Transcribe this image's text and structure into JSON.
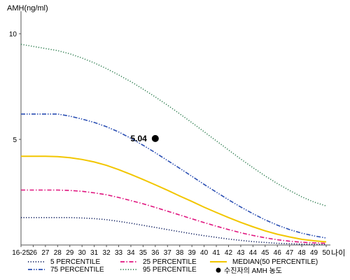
{
  "chart_data": {
    "type": "line",
    "ylabel": "AMH(ng/ml)",
    "xlabel": "나이",
    "x": [
      "16-25",
      "26",
      "27",
      "28",
      "29",
      "30",
      "31",
      "32",
      "33",
      "34",
      "35",
      "36",
      "37",
      "38",
      "39",
      "40",
      "41",
      "42",
      "43",
      "44",
      "45",
      "46",
      "47",
      "48",
      "49",
      "50"
    ],
    "yticks": [
      "10",
      "5"
    ],
    "ylim": [
      0,
      11
    ],
    "grid": false,
    "legend_position": "bottom",
    "series": [
      {
        "name": "5 PERCENTILE",
        "color": "#0a1a5c",
        "dash": "dotted",
        "values": [
          1.3,
          1.3,
          1.3,
          1.3,
          1.3,
          1.28,
          1.25,
          1.2,
          1.12,
          1.03,
          0.93,
          0.83,
          0.73,
          0.63,
          0.53,
          0.44,
          0.36,
          0.28,
          0.22,
          0.16,
          0.12,
          0.08,
          0.06,
          0.04,
          0.03,
          0.02
        ]
      },
      {
        "name": "25 PERCENTILE",
        "color": "#e0157f",
        "dash": "dashdot",
        "values": [
          2.6,
          2.6,
          2.6,
          2.6,
          2.58,
          2.54,
          2.47,
          2.38,
          2.25,
          2.1,
          1.95,
          1.78,
          1.6,
          1.42,
          1.24,
          1.06,
          0.89,
          0.73,
          0.58,
          0.45,
          0.34,
          0.25,
          0.18,
          0.13,
          0.1,
          0.08
        ]
      },
      {
        "name": "MEDIAN(50 PERCENTILE)",
        "color": "#f2c600",
        "dash": "solid",
        "values": [
          4.2,
          4.2,
          4.2,
          4.18,
          4.13,
          4.05,
          3.93,
          3.77,
          3.57,
          3.34,
          3.1,
          2.85,
          2.59,
          2.32,
          2.06,
          1.79,
          1.54,
          1.3,
          1.07,
          0.86,
          0.67,
          0.51,
          0.38,
          0.27,
          0.2,
          0.15
        ]
      },
      {
        "name": "75 PERCENTILE",
        "color": "#2b4fb3",
        "dash": "dashdotdot",
        "values": [
          6.2,
          6.2,
          6.2,
          6.2,
          6.1,
          5.96,
          5.8,
          5.6,
          5.35,
          5.05,
          4.72,
          4.37,
          4.0,
          3.63,
          3.25,
          2.87,
          2.5,
          2.14,
          1.8,
          1.48,
          1.19,
          0.94,
          0.73,
          0.56,
          0.43,
          0.33
        ]
      },
      {
        "name": "95 PERCENTILE",
        "color": "#2e7d4f",
        "dash": "dotted",
        "values": [
          9.5,
          9.4,
          9.3,
          9.2,
          9.05,
          8.85,
          8.62,
          8.35,
          8.05,
          7.73,
          7.38,
          7.01,
          6.62,
          6.21,
          5.79,
          5.36,
          4.93,
          4.5,
          4.07,
          3.66,
          3.27,
          2.91,
          2.58,
          2.28,
          2.03,
          1.85
        ]
      }
    ],
    "point": {
      "x": "36",
      "y": 5.04,
      "label": "5.04",
      "legend": "수진자의 AMH 농도"
    }
  }
}
